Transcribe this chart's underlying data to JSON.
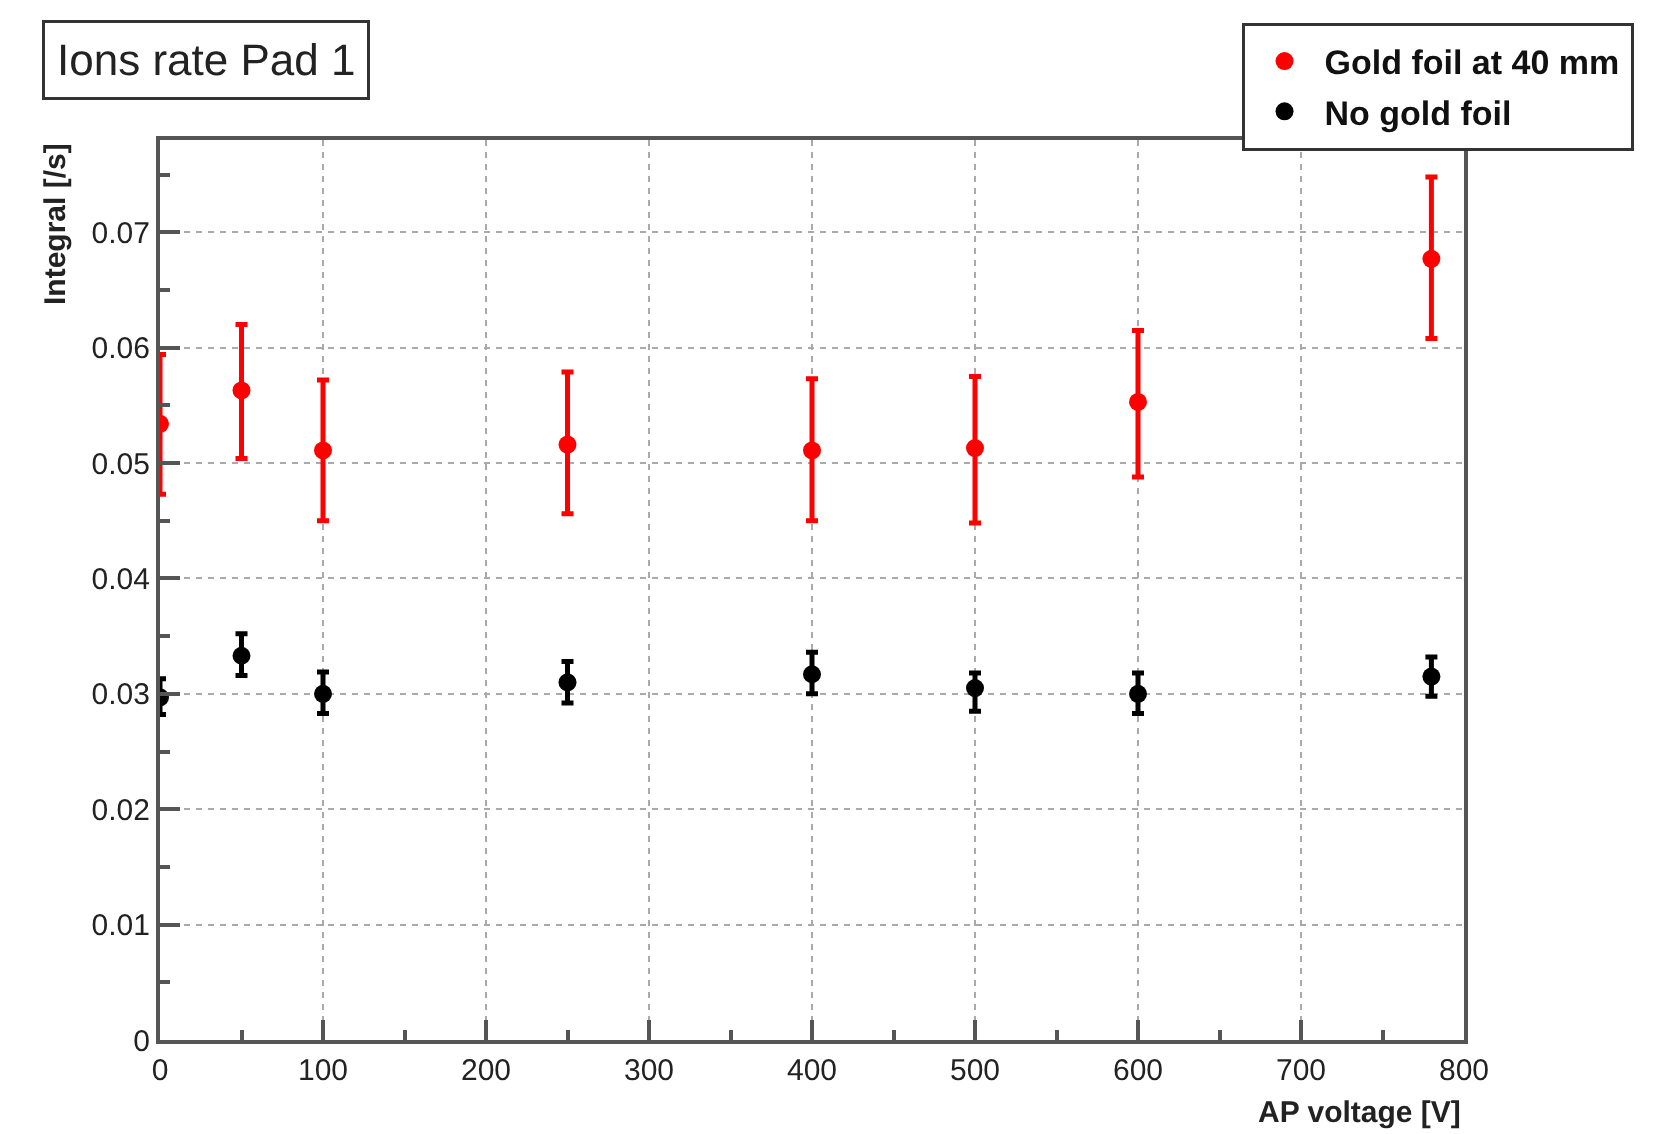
{
  "chart_data": {
    "type": "scatter",
    "title": "Ions rate Pad 1",
    "xlabel": "AP voltage [V]",
    "ylabel": "Integral [/s]",
    "xlim": [
      0,
      800
    ],
    "xticks": [
      0,
      100,
      200,
      300,
      400,
      500,
      600,
      700,
      800
    ],
    "ylim": [
      0,
      0.078
    ],
    "yticks": [
      0,
      0.01,
      0.02,
      0.03,
      0.04,
      0.05,
      0.06,
      0.07
    ],
    "grid": true,
    "legend": "top right",
    "marker": "circle",
    "series": [
      {
        "name": "Gold foil at 40 mm",
        "color": "#ff0000",
        "x": [
          0,
          50,
          100,
          250,
          400,
          500,
          600,
          780
        ],
        "values": [
          0.0534,
          0.0563,
          0.0511,
          0.0516,
          0.0511,
          0.0513,
          0.0553,
          0.0677
        ],
        "errors": [
          [
            0.0473,
            0.0594
          ],
          [
            0.0504,
            0.062
          ],
          [
            0.045,
            0.0572
          ],
          [
            0.0456,
            0.0579
          ],
          [
            0.045,
            0.0573
          ],
          [
            0.0448,
            0.0575
          ],
          [
            0.0488,
            0.0615
          ],
          [
            0.0608,
            0.0748
          ]
        ]
      },
      {
        "name": "No gold foil",
        "color": "#000000",
        "x": [
          0,
          50,
          100,
          250,
          400,
          500,
          600,
          780
        ],
        "values": [
          0.0297,
          0.0333,
          0.03,
          0.031,
          0.0317,
          0.0305,
          0.03,
          0.0315
        ],
        "errors": [
          [
            0.0282,
            0.0313
          ],
          [
            0.0316,
            0.0352
          ],
          [
            0.0283,
            0.0319
          ],
          [
            0.0292,
            0.0328
          ],
          [
            0.03,
            0.0336
          ],
          [
            0.0285,
            0.0318
          ],
          [
            0.0283,
            0.0318
          ],
          [
            0.0298,
            0.0332
          ]
        ]
      }
    ]
  }
}
